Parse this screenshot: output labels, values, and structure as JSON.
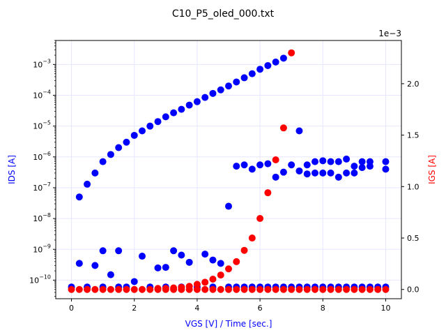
{
  "chart_data": {
    "type": "scatter",
    "title": "C10_P5_oled_000.txt",
    "xlabel": "VGS [V] / Time [sec.]",
    "ylabel_left": "IDS [A]",
    "ylabel_right": "IGS [A]",
    "right_axis_offset_text": "1e−3",
    "xlim": [
      -0.5,
      10.5
    ],
    "ylim_left": [
      2.5e-11,
      0.006
    ],
    "yscale_left": "log",
    "ylim_right": [
      -9e-05,
      0.00242
    ],
    "grid": true,
    "x_ticks": [
      0,
      2,
      4,
      6,
      8,
      10
    ],
    "x_tick_labels": [
      "0",
      "2",
      "4",
      "6",
      "8",
      "10"
    ],
    "left_ticks": [
      {
        "value": 1e-10,
        "mantissa": "10",
        "exp": "−10"
      },
      {
        "value": 1e-09,
        "mantissa": "10",
        "exp": "−9"
      },
      {
        "value": 1e-08,
        "mantissa": "10",
        "exp": "−8"
      },
      {
        "value": 1e-07,
        "mantissa": "10",
        "exp": "−7"
      },
      {
        "value": 1e-06,
        "mantissa": "10",
        "exp": "−6"
      },
      {
        "value": 1e-05,
        "mantissa": "10",
        "exp": "−5"
      },
      {
        "value": 0.0001,
        "mantissa": "10",
        "exp": "−4"
      },
      {
        "value": 0.001,
        "mantissa": "10",
        "exp": "−3"
      }
    ],
    "right_ticks": [
      0,
      0.0005,
      0.001,
      0.0015,
      0.002
    ],
    "right_tick_labels": [
      "0.0",
      "0.5",
      "1.0",
      "1.5",
      "2.0"
    ],
    "colors": {
      "ids": "#0000ff",
      "igs": "#ff0000",
      "left_label": "#0000ff",
      "right_label": "#ff0000",
      "xlabel": "#0000ff",
      "grid": "#e6e6ff"
    },
    "series": [
      {
        "axis": "left",
        "color": "#0000ff",
        "points": [
          [
            0,
            6e-11
          ],
          [
            0.25,
            3.5e-10
          ],
          [
            0.75,
            3e-10
          ],
          [
            1.0,
            9e-10
          ],
          [
            1.25,
            1.5e-10
          ],
          [
            1.5,
            9e-10
          ],
          [
            2.0,
            9e-11
          ],
          [
            2.25,
            6e-10
          ],
          [
            2.75,
            2.5e-10
          ],
          [
            3.0,
            2.6e-10
          ],
          [
            3.25,
            9e-10
          ],
          [
            3.5,
            6.5e-10
          ],
          [
            3.75,
            3.8e-10
          ],
          [
            4.25,
            7e-10
          ],
          [
            4.5,
            4.5e-10
          ],
          [
            4.75,
            3.5e-10
          ],
          [
            5.0,
            2.5e-08
          ],
          [
            0.25,
            5e-08
          ],
          [
            0.5,
            1.3e-07
          ],
          [
            0.75,
            3e-07
          ],
          [
            1.0,
            7e-07
          ],
          [
            1.25,
            1.2e-06
          ],
          [
            1.5,
            2e-06
          ],
          [
            1.75,
            3e-06
          ],
          [
            2.0,
            5e-06
          ],
          [
            2.25,
            7e-06
          ],
          [
            2.5,
            1e-05
          ],
          [
            2.75,
            1.4e-05
          ],
          [
            3.0,
            2e-05
          ],
          [
            3.25,
            2.7e-05
          ],
          [
            3.5,
            3.5e-05
          ],
          [
            3.75,
            4.8e-05
          ],
          [
            4.0,
            6.2e-05
          ],
          [
            4.25,
            8.5e-05
          ],
          [
            4.5,
            0.000115
          ],
          [
            4.75,
            0.00015
          ],
          [
            5.0,
            0.0002
          ],
          [
            5.25,
            0.00027
          ],
          [
            5.5,
            0.00037
          ],
          [
            5.75,
            0.0005
          ],
          [
            6.0,
            0.0007
          ],
          [
            6.25,
            0.00092
          ],
          [
            6.5,
            0.0012
          ],
          [
            6.75,
            0.0016
          ],
          [
            5.25,
            5e-07
          ],
          [
            5.5,
            5.5e-07
          ],
          [
            5.75,
            4e-07
          ],
          [
            6.0,
            5.5e-07
          ],
          [
            6.25,
            6e-07
          ],
          [
            6.5,
            2.2e-07
          ],
          [
            6.75,
            3.2e-07
          ],
          [
            7.0,
            5.5e-07
          ],
          [
            7.25,
            7e-06
          ],
          [
            7.25,
            3.5e-07
          ],
          [
            7.5,
            5.5e-07
          ],
          [
            7.5,
            2.8e-07
          ],
          [
            7.75,
            7e-07
          ],
          [
            7.75,
            3e-07
          ],
          [
            8.0,
            7.5e-07
          ],
          [
            8.0,
            3e-07
          ],
          [
            8.25,
            7e-07
          ],
          [
            8.25,
            3e-07
          ],
          [
            8.5,
            7e-07
          ],
          [
            8.5,
            2.2e-07
          ],
          [
            8.75,
            8.5e-07
          ],
          [
            8.75,
            3e-07
          ],
          [
            9.0,
            5e-07
          ],
          [
            9.0,
            3e-07
          ],
          [
            9.25,
            7e-07
          ],
          [
            9.25,
            4.5e-07
          ],
          [
            9.5,
            7e-07
          ],
          [
            9.5,
            5e-07
          ],
          [
            10.0,
            7e-07
          ],
          [
            10.0,
            4e-07
          ],
          [
            5.0,
            6e-11
          ],
          [
            5.25,
            6e-11
          ],
          [
            5.5,
            6e-11
          ],
          [
            5.75,
            6e-11
          ],
          [
            6.0,
            6e-11
          ],
          [
            6.25,
            6e-11
          ],
          [
            6.5,
            6e-11
          ],
          [
            6.75,
            6e-11
          ],
          [
            7.0,
            6e-11
          ],
          [
            7.25,
            6e-11
          ],
          [
            7.5,
            6e-11
          ],
          [
            7.75,
            6e-11
          ],
          [
            8.0,
            6e-11
          ],
          [
            8.25,
            6e-11
          ],
          [
            8.5,
            6e-11
          ],
          [
            8.75,
            6e-11
          ],
          [
            9.0,
            6e-11
          ],
          [
            9.25,
            6e-11
          ],
          [
            9.5,
            6e-11
          ],
          [
            9.75,
            6e-11
          ],
          [
            10.0,
            6e-11
          ],
          [
            0.5,
            6e-11
          ],
          [
            1.0,
            6e-11
          ],
          [
            1.5,
            6e-11
          ],
          [
            1.75,
            6e-11
          ],
          [
            2.5,
            6e-11
          ],
          [
            3.0,
            6e-11
          ],
          [
            3.5,
            6e-11
          ],
          [
            4.0,
            6e-11
          ],
          [
            4.5,
            6e-11
          ]
        ]
      },
      {
        "axis": "right",
        "color": "#ff0000",
        "points": [
          [
            0,
            0
          ],
          [
            0.25,
            0
          ],
          [
            0.5,
            0
          ],
          [
            0.75,
            0
          ],
          [
            1.0,
            0
          ],
          [
            1.25,
            0
          ],
          [
            1.5,
            0
          ],
          [
            1.75,
            0
          ],
          [
            2.0,
            0
          ],
          [
            2.25,
            0
          ],
          [
            2.5,
            0
          ],
          [
            2.75,
            1e-05
          ],
          [
            3.0,
            1e-05
          ],
          [
            3.25,
            1.5e-05
          ],
          [
            3.5,
            2e-05
          ],
          [
            3.75,
            3e-05
          ],
          [
            4.0,
            5e-05
          ],
          [
            4.25,
            7e-05
          ],
          [
            4.5,
            0.0001
          ],
          [
            4.75,
            0.00014
          ],
          [
            5.0,
            0.0002
          ],
          [
            5.25,
            0.00027
          ],
          [
            5.5,
            0.00038
          ],
          [
            5.75,
            0.0005
          ],
          [
            6.0,
            0.00069
          ],
          [
            6.25,
            0.00094
          ],
          [
            6.5,
            0.00126
          ],
          [
            6.75,
            0.00157
          ],
          [
            7.0,
            0.0023
          ],
          [
            7.0,
            0
          ],
          [
            7.25,
            0
          ],
          [
            7.5,
            0
          ],
          [
            7.75,
            0
          ],
          [
            8.0,
            0
          ],
          [
            8.25,
            0
          ],
          [
            8.5,
            0
          ],
          [
            8.75,
            0
          ],
          [
            9.0,
            0
          ],
          [
            9.25,
            0
          ],
          [
            9.5,
            0
          ],
          [
            9.75,
            0
          ],
          [
            10.0,
            0
          ],
          [
            2.75,
            0
          ],
          [
            3.0,
            0
          ],
          [
            3.25,
            0
          ],
          [
            3.5,
            0
          ],
          [
            3.75,
            0
          ],
          [
            4.0,
            0
          ],
          [
            4.25,
            0
          ],
          [
            4.5,
            0
          ],
          [
            4.75,
            0
          ],
          [
            5.0,
            0
          ],
          [
            5.25,
            0
          ],
          [
            5.5,
            0
          ],
          [
            5.75,
            0
          ],
          [
            6.0,
            0
          ],
          [
            6.25,
            0
          ],
          [
            6.5,
            0
          ],
          [
            6.75,
            0
          ]
        ]
      }
    ]
  }
}
